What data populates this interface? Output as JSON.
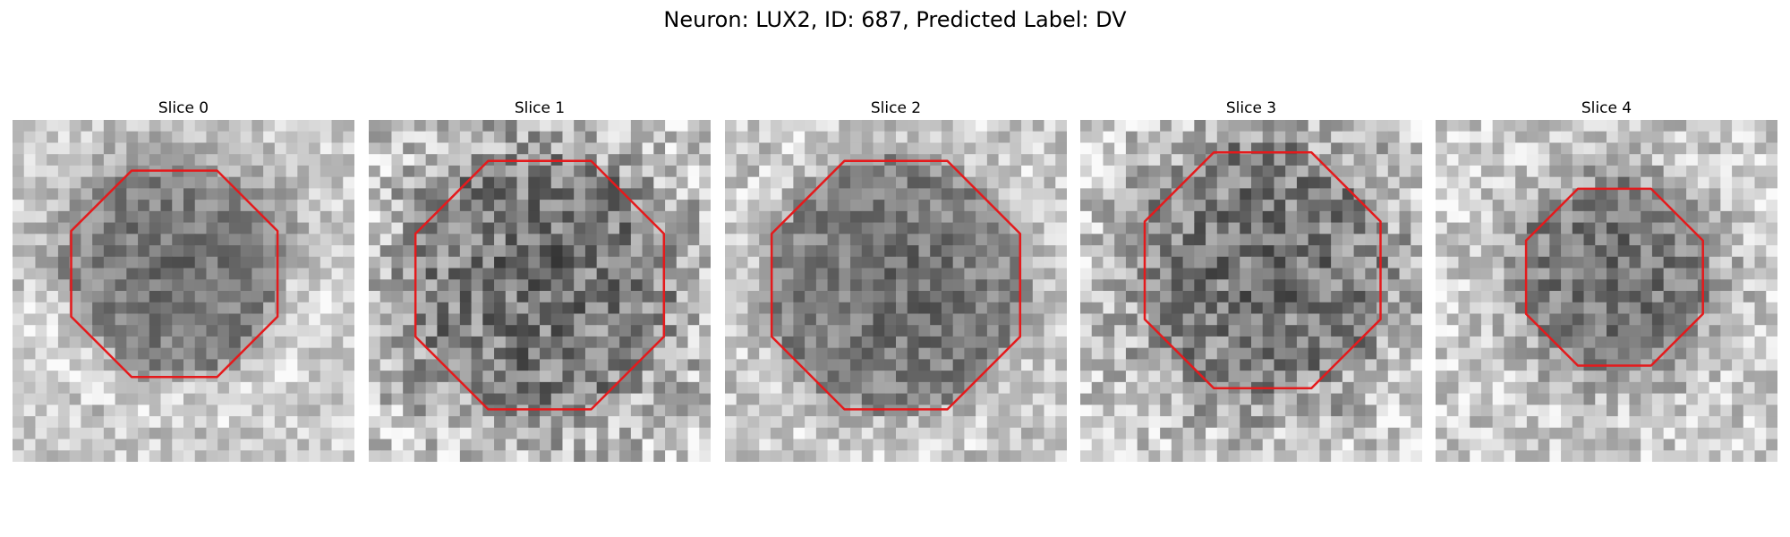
{
  "figure": {
    "title": "Neuron: LUX2, ID: 687, Predicted Label: DV"
  },
  "colors": {
    "contour": "#e41a1c",
    "background": "#ffffff"
  },
  "panels": [
    {
      "title": "Slice 0",
      "seed": 11,
      "contrast": 0.55,
      "rim": "soft"
    },
    {
      "title": "Slice 1",
      "seed": 23,
      "contrast": 0.9,
      "rim": "none"
    },
    {
      "title": "Slice 2",
      "seed": 37,
      "contrast": 0.6,
      "rim": "bright"
    },
    {
      "title": "Slice 3",
      "seed": 41,
      "contrast": 0.85,
      "rim": "none"
    },
    {
      "title": "Slice 4",
      "seed": 53,
      "contrast": 0.7,
      "rim": "none"
    }
  ]
}
